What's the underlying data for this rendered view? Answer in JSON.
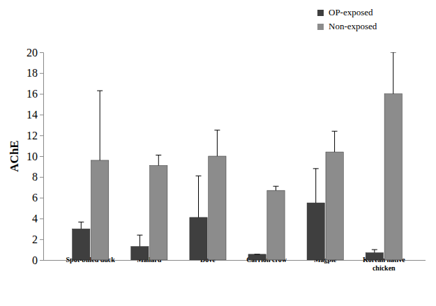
{
  "chart_data": {
    "type": "bar",
    "y_label": "AChE",
    "categories": [
      "Spot-billed duck",
      "Mallard",
      "Dove",
      "Carrion crow",
      "Magpie",
      "Korean native chicken"
    ],
    "series": [
      {
        "name": "OP-exposed",
        "color": "#3f3f3f",
        "values": [
          3.0,
          1.3,
          4.1,
          0.55,
          5.5,
          0.7
        ],
        "errors": [
          0.65,
          1.1,
          4.0,
          0,
          3.3,
          0.3
        ]
      },
      {
        "name": "Non-exposed",
        "color": "#8c8c8c",
        "values": [
          9.6,
          9.1,
          10.0,
          6.7,
          10.4,
          16.0
        ],
        "errors": [
          6.7,
          1.0,
          2.5,
          0.4,
          2.0,
          4.0
        ]
      }
    ],
    "ylim": [
      0,
      20
    ],
    "yticks": [
      0,
      2,
      4,
      6,
      8,
      10,
      12,
      14,
      16,
      18,
      20
    ],
    "grid": false,
    "legend": "top-right"
  }
}
